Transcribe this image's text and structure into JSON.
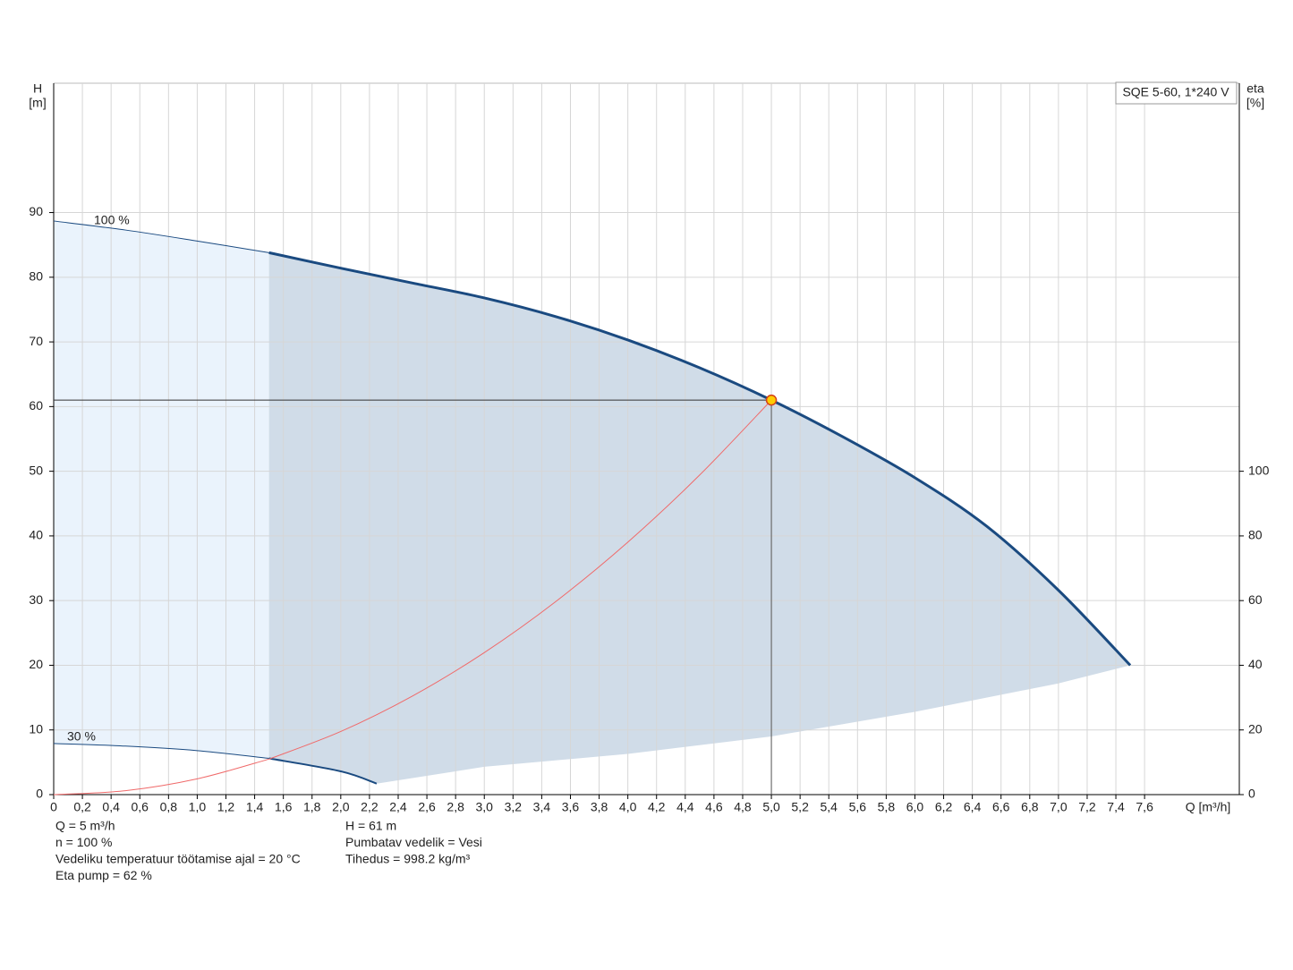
{
  "chart_data": {
    "type": "line",
    "title": "SQE 5-60, 1*240 V",
    "x_label": "Q [m³/h]",
    "y_label": [
      "H",
      "[m]"
    ],
    "y2_label": [
      "eta",
      "[%]"
    ],
    "xlim": [
      0,
      8.26
    ],
    "ylim": [
      0,
      110
    ],
    "y2lim": [
      0,
      220
    ],
    "xticks": [
      0,
      {
        "value": 0.2,
        "label": "0,2"
      },
      {
        "value": 0.4,
        "label": "0,4"
      },
      {
        "value": 0.6,
        "label": "0,6"
      },
      {
        "value": 0.8,
        "label": "0,8"
      },
      {
        "value": 1.0,
        "label": "1,0"
      },
      {
        "value": 1.2,
        "label": "1,2"
      },
      {
        "value": 1.4,
        "label": "1,4"
      },
      {
        "value": 1.6,
        "label": "1,6"
      },
      {
        "value": 1.8,
        "label": "1,8"
      },
      {
        "value": 2.0,
        "label": "2,0"
      },
      {
        "value": 2.2,
        "label": "2,2"
      },
      {
        "value": 2.4,
        "label": "2,4"
      },
      {
        "value": 2.6,
        "label": "2,6"
      },
      {
        "value": 2.8,
        "label": "2,8"
      },
      {
        "value": 3.0,
        "label": "3,0"
      },
      {
        "value": 3.2,
        "label": "3,2"
      },
      {
        "value": 3.4,
        "label": "3,4"
      },
      {
        "value": 3.6,
        "label": "3,6"
      },
      {
        "value": 3.8,
        "label": "3,8"
      },
      {
        "value": 4.0,
        "label": "4,0"
      },
      {
        "value": 4.2,
        "label": "4,2"
      },
      {
        "value": 4.4,
        "label": "4,4"
      },
      {
        "value": 4.6,
        "label": "4,6"
      },
      {
        "value": 4.8,
        "label": "4,8"
      },
      {
        "value": 5.0,
        "label": "5,0"
      },
      {
        "value": 5.2,
        "label": "5,2"
      },
      {
        "value": 5.4,
        "label": "5,4"
      },
      {
        "value": 5.6,
        "label": "5,6"
      },
      {
        "value": 5.8,
        "label": "5,8"
      },
      {
        "value": 6.0,
        "label": "6,0"
      },
      {
        "value": 6.2,
        "label": "6,2"
      },
      {
        "value": 6.4,
        "label": "6,4"
      },
      {
        "value": 6.6,
        "label": "6,6"
      },
      {
        "value": 6.8,
        "label": "6,8"
      },
      {
        "value": 7.0,
        "label": "7,0"
      },
      {
        "value": 7.2,
        "label": "7,2"
      },
      {
        "value": 7.4,
        "label": "7,4"
      },
      {
        "value": 7.6,
        "label": "7,6"
      }
    ],
    "yticks": [
      0,
      10,
      20,
      30,
      40,
      50,
      60,
      70,
      80,
      90
    ],
    "y2ticks": [
      0,
      20,
      40,
      60,
      80,
      100
    ],
    "grid": true,
    "min_flow": 1.5,
    "fill_colors": [
      "#eaf3fc",
      "#d0dce8"
    ],
    "series": [
      {
        "name": "100 %",
        "color": "#1a4a80",
        "width": 3,
        "x": [
          0,
          0.5,
          1,
          1.5,
          2,
          2.5,
          3,
          3.5,
          4,
          4.5,
          5,
          5.5,
          6,
          6.5,
          7,
          7.5
        ],
        "values": [
          88.7,
          87.3,
          85.6,
          83.8,
          81.4,
          79.1,
          76.8,
          73.9,
          70.3,
          66.0,
          61,
          55.3,
          49.0,
          41.5,
          31.6,
          20
        ]
      },
      {
        "name": "30 %",
        "color": "#1a4a80",
        "width": 2,
        "x": [
          0,
          0.5,
          1,
          1.5,
          2,
          2.25
        ],
        "values": [
          7.9,
          7.5,
          6.8,
          5.6,
          3.6,
          1.7
        ]
      },
      {
        "color": "#f06a6a",
        "width": 1,
        "x": [
          0,
          0.5,
          1,
          1.5,
          2,
          2.5,
          3,
          3.5,
          4,
          4.5,
          5
        ],
        "values": [
          0,
          0.61,
          2.44,
          5.49,
          9.76,
          15.25,
          21.96,
          29.89,
          39.04,
          49.41,
          61
        ]
      },
      {
        "line": false,
        "x": [
          2.25,
          3,
          4,
          5,
          6,
          7,
          7.5
        ],
        "values": [
          1.7,
          4.3,
          6.3,
          9.0,
          12.8,
          17.2,
          20
        ]
      }
    ],
    "duty_point": {
      "x": 5,
      "y": 61,
      "color": "#ffcc00"
    },
    "notes": [
      [
        "Q = 5 m³/h",
        "n = 100 %",
        "Vedeliku temperatuur töötamise ajal = 20 °C",
        "Eta pump = 62 %"
      ],
      [
        "H = 61 m",
        "Pumbatav vedelik = Vesi",
        "Tihedus = 998.2 kg/m³"
      ]
    ]
  }
}
